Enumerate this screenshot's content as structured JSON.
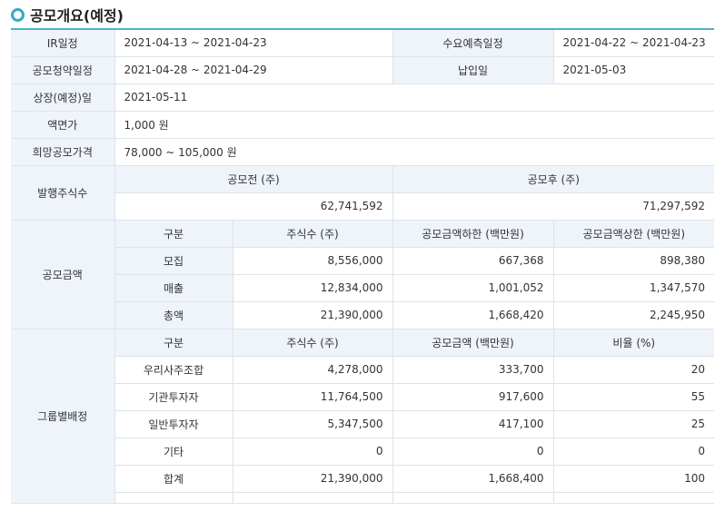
{
  "title": "공모개요(예정)",
  "schedule": {
    "ir_label": "IR일정",
    "ir_value": "2021-04-13 ~ 2021-04-23",
    "demand_label": "수요예측일정",
    "demand_value": "2021-04-22 ~ 2021-04-23",
    "subscription_label": "공모청약일정",
    "subscription_value": "2021-04-28 ~ 2021-04-29",
    "payment_label": "납입일",
    "payment_value": "2021-05-03",
    "listing_label": "상장(예정)일",
    "listing_value": "2021-05-11",
    "par_label": "액면가",
    "par_value": "1,000 원",
    "price_label": "희망공모가격",
    "price_value": "78,000 ~ 105,000 원"
  },
  "shares": {
    "label": "발행주식수",
    "before_label": "공모전 (주)",
    "after_label": "공모후 (주)",
    "before_value": "62,741,592",
    "after_value": "71,297,592"
  },
  "amount": {
    "label": "공모금액",
    "headers": [
      "구분",
      "주식수 (주)",
      "공모금액하한 (백만원)",
      "공모금액상한 (백만원)"
    ],
    "rows": [
      [
        "모집",
        "8,556,000",
        "667,368",
        "898,380"
      ],
      [
        "매출",
        "12,834,000",
        "1,001,052",
        "1,347,570"
      ],
      [
        "총액",
        "21,390,000",
        "1,668,420",
        "2,245,950"
      ]
    ]
  },
  "group": {
    "label": "그룹별배정",
    "headers": [
      "구분",
      "주식수 (주)",
      "공모금액 (백만원)",
      "비율 (%)"
    ],
    "rows": [
      [
        "우리사주조합",
        "4,278,000",
        "333,700",
        "20"
      ],
      [
        "기관투자자",
        "11,764,500",
        "917,600",
        "55"
      ],
      [
        "일반투자자",
        "5,347,500",
        "417,100",
        "25"
      ],
      [
        "기타",
        "0",
        "0",
        "0"
      ],
      [
        "합계",
        "21,390,000",
        "1,668,400",
        "100"
      ]
    ]
  }
}
